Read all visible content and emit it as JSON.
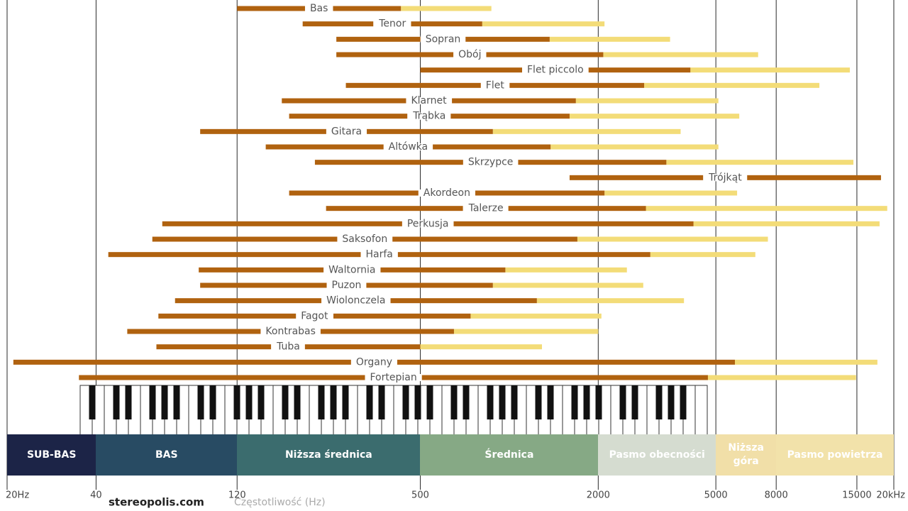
{
  "chart_data": {
    "type": "range",
    "categories": [
      "Bas",
      "Tenor",
      "Sopran",
      "Obój",
      "Flet piccolo",
      "Flet",
      "Klarnet",
      "Trąbka",
      "Gitara",
      "Altówka",
      "Skrzypce",
      "Trójkąt",
      "Akordeon",
      "Talerze",
      "Perkusja",
      "Saksofon",
      "Harfa",
      "Waltornia",
      "Puzon",
      "Wiolonczela",
      "Fagot",
      "Kontrabas",
      "Tuba",
      "Organy",
      "Fortepian"
    ],
    "low": [
      120,
      200,
      260,
      260,
      500,
      280,
      170,
      180,
      90,
      150,
      220,
      1600,
      180,
      240,
      67,
      62,
      44,
      89,
      90,
      74,
      65,
      51,
      64,
      21,
      35
    ],
    "fundamental_high": [
      430,
      810,
      1370,
      2080,
      4100,
      2860,
      1680,
      1600,
      880,
      1380,
      3400,
      18100,
      2100,
      2900,
      4200,
      1700,
      3000,
      970,
      880,
      1240,
      740,
      650,
      500,
      5800,
      4700
    ],
    "harmonic_high": [
      870,
      2100,
      3500,
      6950,
      14200,
      11200,
      5100,
      6000,
      3800,
      5100,
      14600,
      null,
      5900,
      19000,
      17900,
      7500,
      6800,
      2500,
      2840,
      3900,
      2050,
      2000,
      1290,
      17600,
      14900
    ],
    "colors": [
      "#b0620f",
      "#f3dc78"
    ],
    "log_x": true,
    "xlim": [
      20,
      20000
    ],
    "xticks": [
      {
        "value": 20,
        "label": "20Hz"
      },
      40,
      120,
      500,
      2000,
      5000,
      8000,
      15000,
      {
        "value": 20000,
        "label": "20kHz"
      }
    ],
    "x_label": "Częstotliwość (Hz)",
    "source": "stereopolis.com",
    "bands": [
      {
        "label": "SUB-BAS",
        "from": 20,
        "to": 40,
        "color": "#1c2447"
      },
      {
        "label": "BAS",
        "from": 40,
        "to": 120,
        "color": "#284b63"
      },
      {
        "label": "Niższa średnica",
        "from": 120,
        "to": 500,
        "color": "#3b6c6e"
      },
      {
        "label": "Średnica",
        "from": 500,
        "to": 2000,
        "color": "#86a985"
      },
      {
        "label": "Pasmo obecności",
        "from": 2000,
        "to": 5000,
        "color": "#d5dcd0"
      },
      {
        "label": "Niższa góra",
        "from": 5000,
        "to": 8000,
        "color": "#f1dfa8"
      },
      {
        "label": "Pasmo powietrza",
        "from": 8000,
        "to": 20000,
        "color": "#f2e2aa"
      }
    ]
  }
}
